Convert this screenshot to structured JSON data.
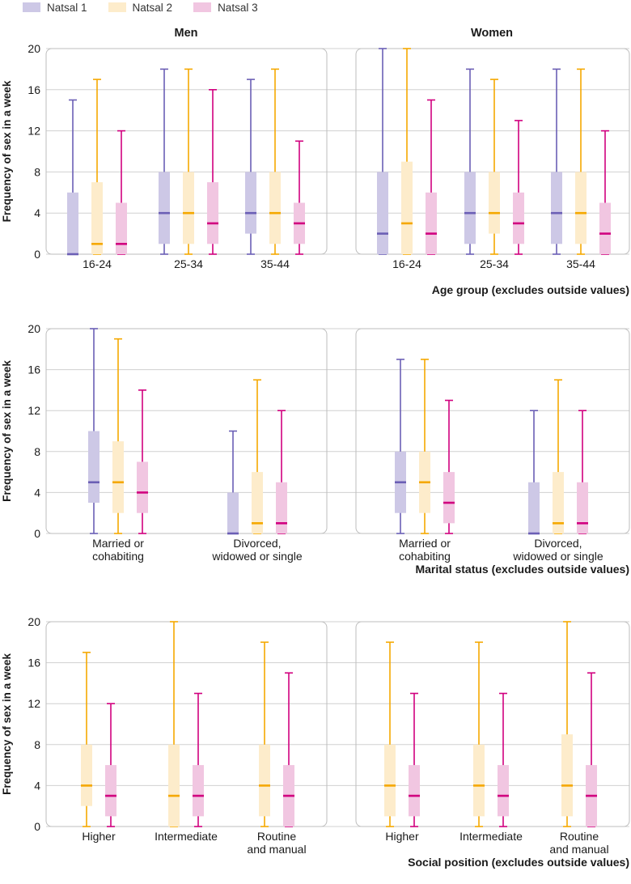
{
  "colors": {
    "grid": "#d0d0d0",
    "frame": "#bdbdbd",
    "text": "#1a1a1a"
  },
  "legend": [
    {
      "name": "Natsal 1",
      "fill": "#cdc8e6",
      "line": "#6b5fb5"
    },
    {
      "name": "Natsal 2",
      "fill": "#fdeccb",
      "line": "#f5a800"
    },
    {
      "name": "Natsal 3",
      "fill": "#f1c6e1",
      "line": "#d1007f"
    }
  ],
  "chart_data": [
    {
      "type": "box",
      "group_titles": [
        "Men",
        "Women"
      ],
      "categories": [
        "16-24",
        "25-34",
        "35-44"
      ],
      "xlabel": "Age group (excludes outside values)",
      "ylabel": "Frequency of sex in a week",
      "ylim": [
        0,
        20
      ],
      "yticks": [
        0,
        4,
        8,
        12,
        16,
        20
      ],
      "grid": true,
      "data": {
        "Men": {
          "16-24": [
            {
              "series": "Natsal 1",
              "min": 0,
              "q1": 0,
              "median": 0,
              "q3": 6,
              "max": 15
            },
            {
              "series": "Natsal 2",
              "min": 0,
              "q1": 0,
              "median": 1,
              "q3": 7,
              "max": 17
            },
            {
              "series": "Natsal 3",
              "min": 0,
              "q1": 0,
              "median": 1,
              "q3": 5,
              "max": 12
            }
          ],
          "25-34": [
            {
              "series": "Natsal 1",
              "min": 0,
              "q1": 1,
              "median": 4,
              "q3": 8,
              "max": 18
            },
            {
              "series": "Natsal 2",
              "min": 0,
              "q1": 1,
              "median": 4,
              "q3": 8,
              "max": 18
            },
            {
              "series": "Natsal 3",
              "min": 0,
              "q1": 1,
              "median": 3,
              "q3": 7,
              "max": 16
            }
          ],
          "35-44": [
            {
              "series": "Natsal 1",
              "min": 0,
              "q1": 2,
              "median": 4,
              "q3": 8,
              "max": 17
            },
            {
              "series": "Natsal 2",
              "min": 0,
              "q1": 1,
              "median": 4,
              "q3": 8,
              "max": 18
            },
            {
              "series": "Natsal 3",
              "min": 0,
              "q1": 1,
              "median": 3,
              "q3": 5,
              "max": 11
            }
          ]
        },
        "Women": {
          "16-24": [
            {
              "series": "Natsal 1",
              "min": 0,
              "q1": 0,
              "median": 2,
              "q3": 8,
              "max": 20
            },
            {
              "series": "Natsal 2",
              "min": 0,
              "q1": 0,
              "median": 3,
              "q3": 9,
              "max": 20
            },
            {
              "series": "Natsal 3",
              "min": 0,
              "q1": 0,
              "median": 2,
              "q3": 6,
              "max": 15
            }
          ],
          "25-34": [
            {
              "series": "Natsal 1",
              "min": 0,
              "q1": 1,
              "median": 4,
              "q3": 8,
              "max": 18
            },
            {
              "series": "Natsal 2",
              "min": 0,
              "q1": 2,
              "median": 4,
              "q3": 8,
              "max": 17
            },
            {
              "series": "Natsal 3",
              "min": 0,
              "q1": 1,
              "median": 3,
              "q3": 6,
              "max": 13
            }
          ],
          "35-44": [
            {
              "series": "Natsal 1",
              "min": 0,
              "q1": 1,
              "median": 4,
              "q3": 8,
              "max": 18
            },
            {
              "series": "Natsal 2",
              "min": 0,
              "q1": 1,
              "median": 4,
              "q3": 8,
              "max": 18
            },
            {
              "series": "Natsal 3",
              "min": 0,
              "q1": 0,
              "median": 2,
              "q3": 5,
              "max": 12
            }
          ]
        }
      }
    },
    {
      "type": "box",
      "group_titles": [
        "",
        ""
      ],
      "categories": [
        "Married or\ncohabiting",
        "Divorced,\nwidowed or single"
      ],
      "xlabel": "Marital status (excludes outside values)",
      "ylabel": "Frequency of sex in a week",
      "ylim": [
        0,
        20
      ],
      "yticks": [
        0,
        4,
        8,
        12,
        16,
        20
      ],
      "grid": true,
      "data": {
        "Men": {
          "Married or\ncohabiting": [
            {
              "series": "Natsal 1",
              "min": 0,
              "q1": 3,
              "median": 5,
              "q3": 10,
              "max": 20
            },
            {
              "series": "Natsal 2",
              "min": 0,
              "q1": 2,
              "median": 5,
              "q3": 9,
              "max": 19
            },
            {
              "series": "Natsal 3",
              "min": 0,
              "q1": 2,
              "median": 4,
              "q3": 7,
              "max": 14
            }
          ],
          "Divorced,\nwidowed or single": [
            {
              "series": "Natsal 1",
              "min": 0,
              "q1": 0,
              "median": 0,
              "q3": 4,
              "max": 10
            },
            {
              "series": "Natsal 2",
              "min": 0,
              "q1": 0,
              "median": 1,
              "q3": 6,
              "max": 15
            },
            {
              "series": "Natsal 3",
              "min": 0,
              "q1": 0,
              "median": 1,
              "q3": 5,
              "max": 12
            }
          ]
        },
        "Women": {
          "Married or\ncohabiting": [
            {
              "series": "Natsal 1",
              "min": 0,
              "q1": 2,
              "median": 5,
              "q3": 8,
              "max": 17
            },
            {
              "series": "Natsal 2",
              "min": 0,
              "q1": 2,
              "median": 5,
              "q3": 8,
              "max": 17
            },
            {
              "series": "Natsal 3",
              "min": 0,
              "q1": 1,
              "median": 3,
              "q3": 6,
              "max": 13
            }
          ],
          "Divorced,\nwidowed or single": [
            {
              "series": "Natsal 1",
              "min": 0,
              "q1": 0,
              "median": 0,
              "q3": 5,
              "max": 12
            },
            {
              "series": "Natsal 2",
              "min": 0,
              "q1": 0,
              "median": 1,
              "q3": 6,
              "max": 15
            },
            {
              "series": "Natsal 3",
              "min": 0,
              "q1": 0,
              "median": 1,
              "q3": 5,
              "max": 12
            }
          ]
        }
      }
    },
    {
      "type": "box",
      "group_titles": [
        "",
        ""
      ],
      "categories": [
        "Higher",
        "Intermediate",
        "Routine\nand manual"
      ],
      "xlabel": "Social position (excludes outside values)",
      "ylabel": "Frequency of sex in a week",
      "ylim": [
        0,
        20
      ],
      "yticks": [
        0,
        4,
        8,
        12,
        16,
        20
      ],
      "grid": true,
      "data": {
        "Men": {
          "Higher": [
            {
              "series": "Natsal 2",
              "min": 0,
              "q1": 2,
              "median": 4,
              "q3": 8,
              "max": 17
            },
            {
              "series": "Natsal 3",
              "min": 0,
              "q1": 1,
              "median": 3,
              "q3": 6,
              "max": 12
            }
          ],
          "Intermediate": [
            {
              "series": "Natsal 2",
              "min": 0,
              "q1": 0,
              "median": 3,
              "q3": 8,
              "max": 20
            },
            {
              "series": "Natsal 3",
              "min": 0,
              "q1": 1,
              "median": 3,
              "q3": 6,
              "max": 13
            }
          ],
          "Routine\nand manual": [
            {
              "series": "Natsal 2",
              "min": 0,
              "q1": 1,
              "median": 4,
              "q3": 8,
              "max": 18
            },
            {
              "series": "Natsal 3",
              "min": 0,
              "q1": 0,
              "median": 3,
              "q3": 6,
              "max": 15
            }
          ]
        },
        "Women": {
          "Higher": [
            {
              "series": "Natsal 2",
              "min": 0,
              "q1": 1,
              "median": 4,
              "q3": 8,
              "max": 18
            },
            {
              "series": "Natsal 3",
              "min": 0,
              "q1": 1,
              "median": 3,
              "q3": 6,
              "max": 13
            }
          ],
          "Intermediate": [
            {
              "series": "Natsal 2",
              "min": 0,
              "q1": 1,
              "median": 4,
              "q3": 8,
              "max": 18
            },
            {
              "series": "Natsal 3",
              "min": 0,
              "q1": 1,
              "median": 3,
              "q3": 6,
              "max": 13
            }
          ],
          "Routine\nand manual": [
            {
              "series": "Natsal 2",
              "min": 0,
              "q1": 1,
              "median": 4,
              "q3": 9,
              "max": 20
            },
            {
              "series": "Natsal 3",
              "min": 0,
              "q1": 0,
              "median": 3,
              "q3": 6,
              "max": 15
            }
          ]
        }
      }
    }
  ]
}
